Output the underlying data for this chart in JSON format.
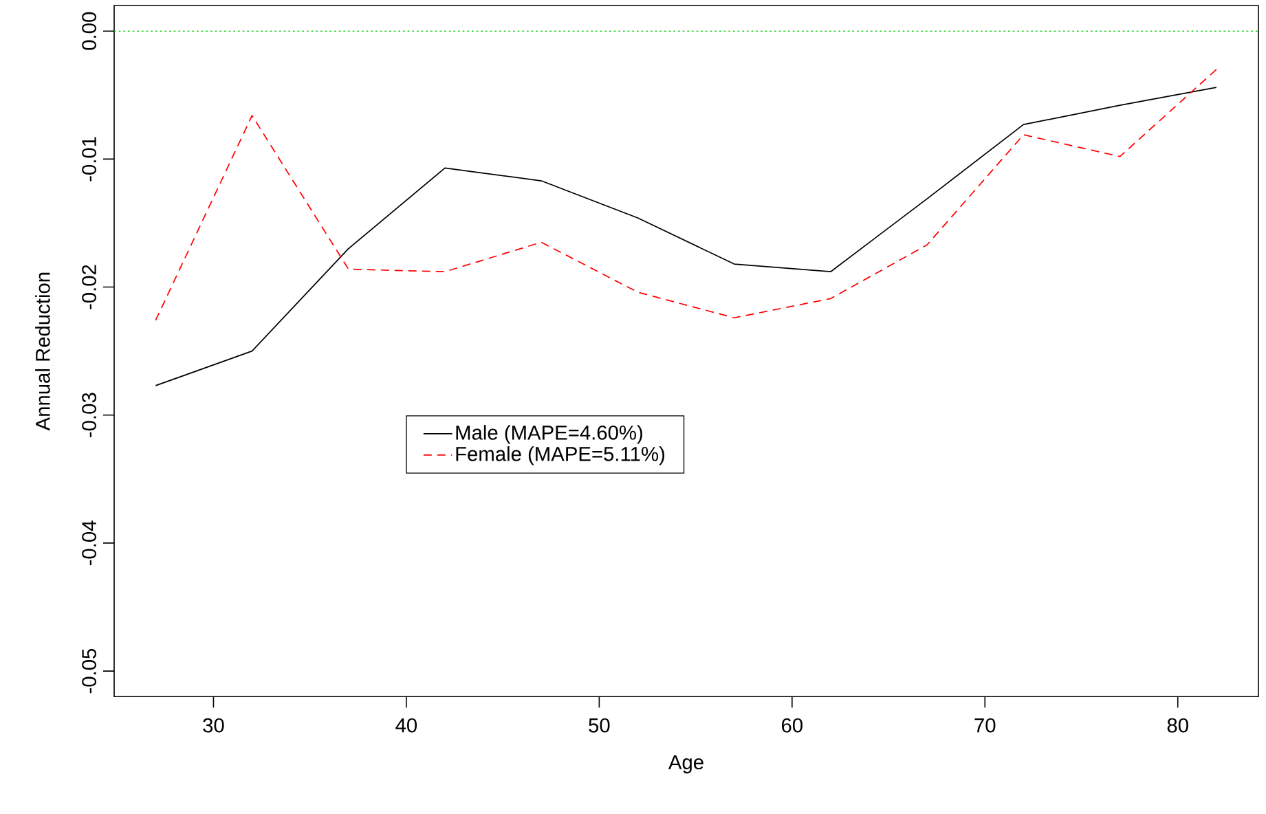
{
  "chart_data": {
    "type": "line",
    "xlabel": "Age",
    "ylabel": "Annual Reduction",
    "x": [
      27,
      32,
      37,
      42,
      47,
      52,
      57,
      62,
      67,
      72,
      77,
      82
    ],
    "series": [
      {
        "name": "Male (MAPE=4.60%)",
        "color": "#000000",
        "line_style": "solid",
        "values": [
          -0.0277,
          -0.025,
          -0.017,
          -0.0107,
          -0.0117,
          -0.0146,
          -0.0182,
          -0.0188,
          -0.0131,
          -0.0073,
          -0.0058,
          -0.0044
        ]
      },
      {
        "name": "Female (MAPE=5.11%)",
        "color": "#ff0000",
        "line_style": "dashed",
        "values": [
          -0.0226,
          -0.0066,
          -0.0186,
          -0.0188,
          -0.0165,
          -0.0204,
          -0.0224,
          -0.0209,
          -0.0167,
          -0.0081,
          -0.0098,
          -0.003
        ]
      }
    ],
    "xlim": [
      24.85,
      84.18
    ],
    "ylim": [
      -0.052,
      0.002
    ],
    "xticks": [
      30,
      40,
      50,
      60,
      70,
      80
    ],
    "yticks": [
      {
        "value": 0,
        "label": "0.00"
      },
      {
        "value": -0.01,
        "label": "-0.01"
      },
      {
        "value": -0.02,
        "label": "-0.02"
      },
      {
        "value": -0.03,
        "label": "-0.03"
      },
      {
        "value": -0.04,
        "label": "-0.04"
      },
      {
        "value": -0.05,
        "label": "-0.05"
      }
    ],
    "ref_lines": [
      {
        "axis": "y",
        "value": 0,
        "color": "#00cc00",
        "line_style": "dotted"
      }
    ],
    "grid": false,
    "legend": "center",
    "marker": "none"
  }
}
